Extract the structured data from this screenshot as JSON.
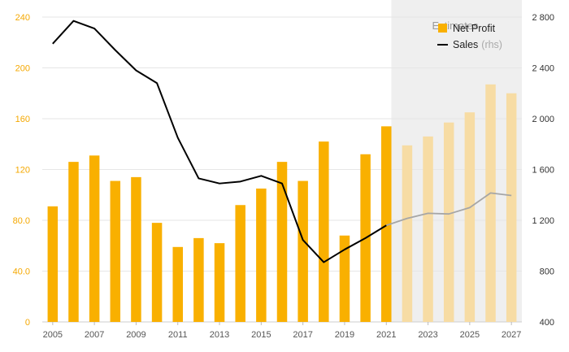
{
  "chart_data": {
    "type": "bar",
    "years": [
      2005,
      2006,
      2007,
      2008,
      2009,
      2010,
      2011,
      2012,
      2013,
      2014,
      2015,
      2016,
      2017,
      2018,
      2019,
      2020,
      2021,
      2022,
      2023,
      2024,
      2025,
      2026,
      2027
    ],
    "x_tick_labels": [
      "2005",
      "2007",
      "2009",
      "2011",
      "2013",
      "2015",
      "2017",
      "2019",
      "2021",
      "2023",
      "2025",
      "2027"
    ],
    "estimate_start_year": 2022,
    "estimates_label": "Estimates",
    "series": [
      {
        "name": "Net Profit",
        "axis": "left",
        "kind": "bar",
        "color": "#f9b000",
        "estimate_color": "#f7dca4",
        "values": [
          91,
          126,
          131,
          111,
          114,
          78,
          59,
          66,
          62,
          92,
          105,
          126,
          111,
          142,
          68,
          132,
          154,
          139,
          146,
          157,
          165,
          187,
          180
        ]
      },
      {
        "name": "Sales",
        "name_suffix": "(rhs)",
        "axis": "right",
        "kind": "line",
        "color": "#000000",
        "estimate_color": "#a6a6a6",
        "values": [
          2590,
          2770,
          2710,
          2540,
          2380,
          2280,
          1850,
          1530,
          1490,
          1505,
          1550,
          1490,
          1045,
          870,
          970,
          1060,
          1160,
          1215,
          1255,
          1250,
          1300,
          1415,
          1395
        ]
      }
    ],
    "y_left": {
      "min": 0,
      "max": 240,
      "ticks": [
        "0",
        "40.0",
        "80.0",
        "120",
        "160",
        "200",
        "240"
      ]
    },
    "y_right": {
      "min": 400,
      "max": 2800,
      "ticks": [
        "400",
        "800",
        "1 200",
        "1 600",
        "2 000",
        "2 400",
        "2 800"
      ]
    },
    "legend": {
      "position": "top-right"
    },
    "grid": true
  }
}
